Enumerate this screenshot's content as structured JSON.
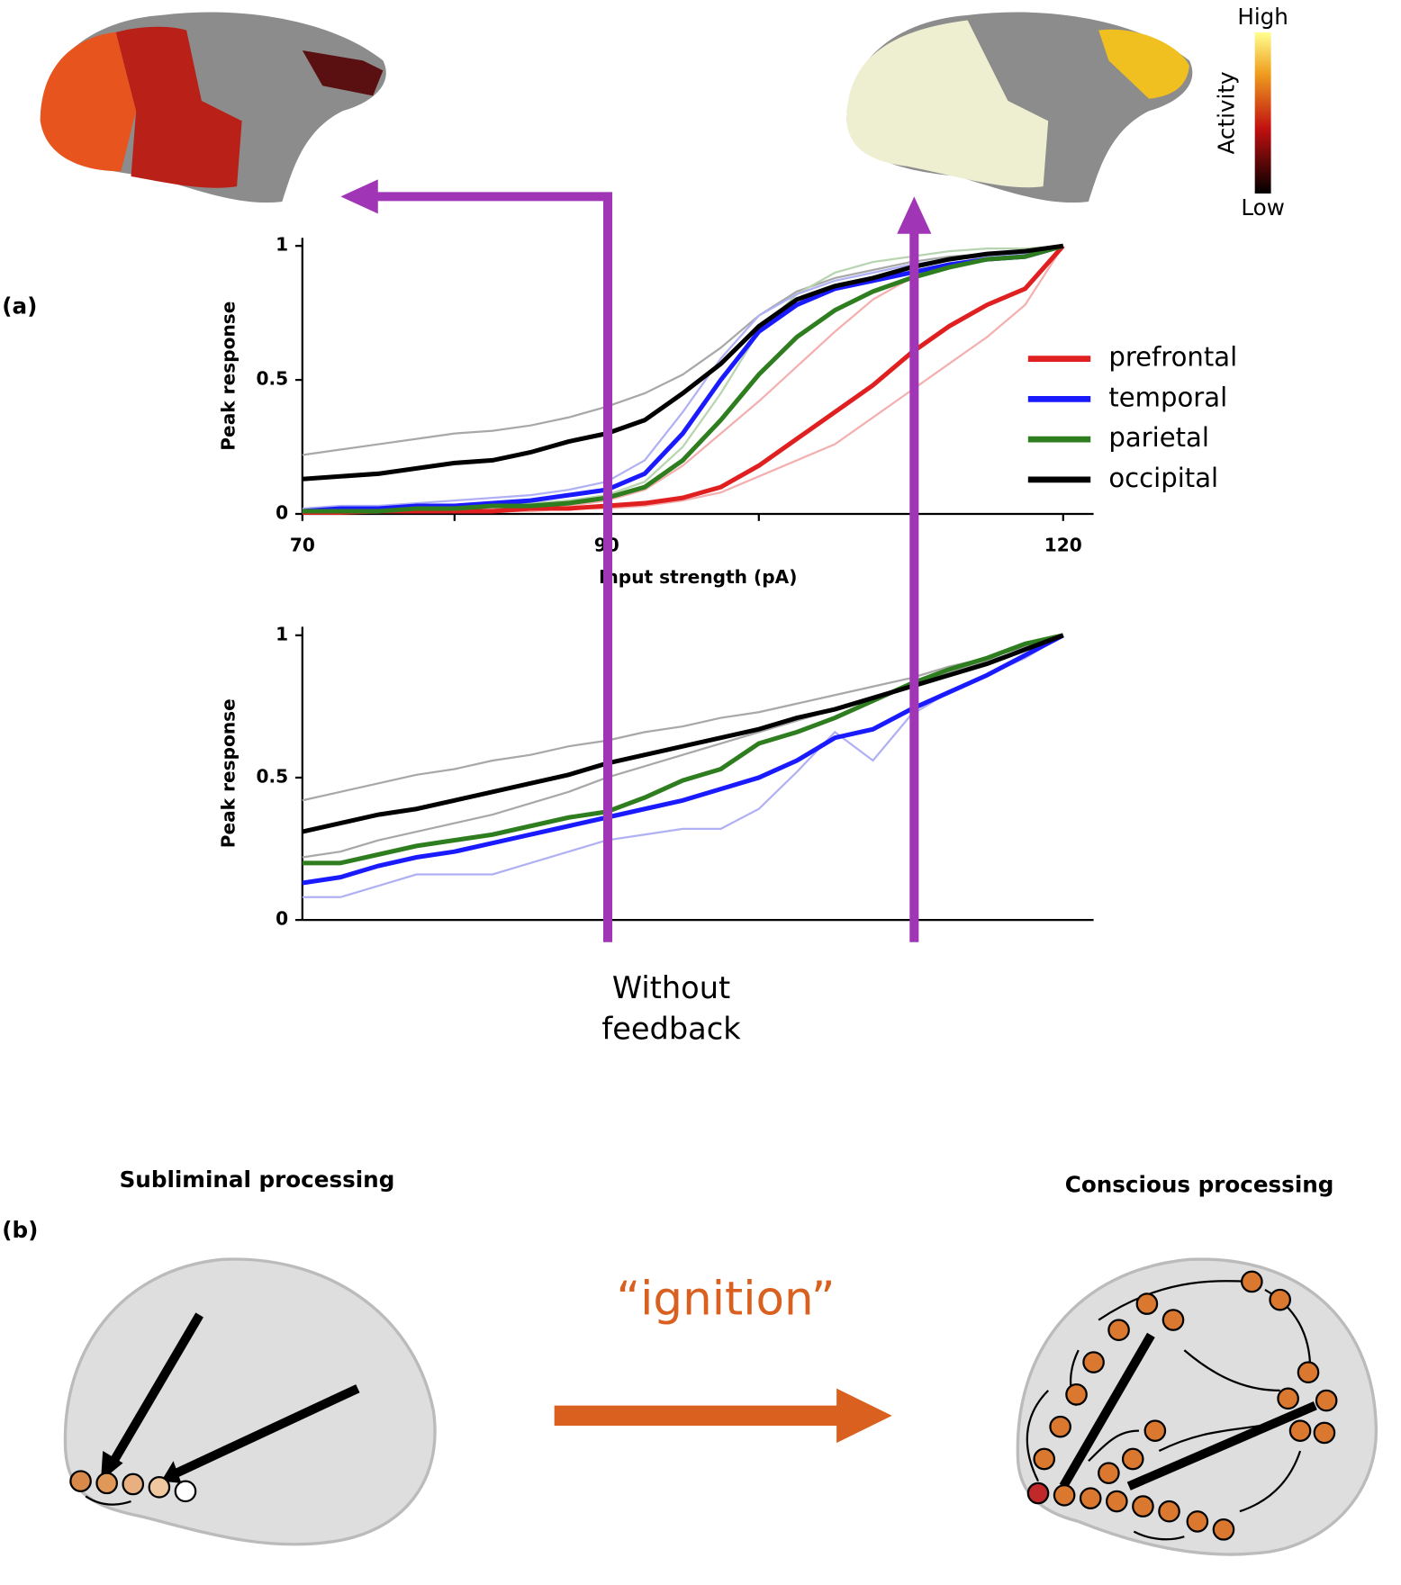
{
  "chart_data": [
    {
      "type": "line",
      "xlabel": "Input strength (pA)",
      "ylabel": "Peak response",
      "xlim": [
        70,
        122
      ],
      "xticks": [
        70,
        90,
        120
      ],
      "xminor_ticks": [
        80,
        100,
        110
      ],
      "ylim": [
        0,
        1.03
      ],
      "yticks": [
        0,
        0.5,
        1
      ],
      "legend": "right",
      "x": [
        70,
        72.5,
        75,
        77.5,
        80,
        82.5,
        85,
        87.5,
        90,
        92.5,
        95,
        97.5,
        100,
        102.5,
        105,
        107.5,
        110,
        112.5,
        115,
        117.5,
        120
      ],
      "traces": [
        {
          "color": "#a8a8a8",
          "values": [
            0.22,
            0.24,
            0.26,
            0.28,
            0.3,
            0.31,
            0.33,
            0.36,
            0.4,
            0.45,
            0.52,
            0.62,
            0.74,
            0.83,
            0.88,
            0.91,
            0.94,
            0.96,
            0.97,
            0.98,
            1
          ]
        },
        {
          "color": "#b8d4b0",
          "values": [
            0.01,
            0.01,
            0.02,
            0.02,
            0.03,
            0.03,
            0.04,
            0.05,
            0.07,
            0.12,
            0.25,
            0.45,
            0.68,
            0.82,
            0.9,
            0.94,
            0.96,
            0.98,
            0.99,
            0.99,
            1
          ]
        },
        {
          "color": "#f4b0b0",
          "values": [
            0.005,
            0.005,
            0.01,
            0.01,
            0.01,
            0.02,
            0.02,
            0.03,
            0.05,
            0.09,
            0.18,
            0.3,
            0.42,
            0.55,
            0.68,
            0.8,
            0.88,
            0.93,
            0.96,
            0.98,
            1
          ]
        },
        {
          "color": "#f4b0b0",
          "values": [
            0.005,
            0.005,
            0.005,
            0.01,
            0.01,
            0.01,
            0.01,
            0.02,
            0.02,
            0.03,
            0.05,
            0.08,
            0.14,
            0.2,
            0.26,
            0.36,
            0.46,
            0.56,
            0.66,
            0.78,
            1
          ]
        },
        {
          "color": "#b0b0f4",
          "values": [
            0.02,
            0.03,
            0.03,
            0.04,
            0.05,
            0.06,
            0.07,
            0.09,
            0.12,
            0.2,
            0.38,
            0.58,
            0.74,
            0.82,
            0.87,
            0.9,
            0.93,
            0.95,
            0.96,
            0.97,
            1
          ]
        }
      ],
      "series": [
        {
          "name": "prefrontal",
          "color": "#e02020",
          "values": [
            0.005,
            0.005,
            0.01,
            0.01,
            0.01,
            0.01,
            0.02,
            0.02,
            0.03,
            0.04,
            0.06,
            0.1,
            0.18,
            0.28,
            0.38,
            0.48,
            0.6,
            0.7,
            0.78,
            0.84,
            1
          ]
        },
        {
          "name": "temporal",
          "color": "#1a1aff",
          "values": [
            0.01,
            0.02,
            0.02,
            0.03,
            0.03,
            0.04,
            0.05,
            0.07,
            0.09,
            0.15,
            0.3,
            0.5,
            0.68,
            0.78,
            0.84,
            0.87,
            0.9,
            0.93,
            0.95,
            0.96,
            1
          ]
        },
        {
          "name": "parietal",
          "color": "#2e7d1e",
          "values": [
            0.01,
            0.01,
            0.01,
            0.02,
            0.02,
            0.03,
            0.03,
            0.04,
            0.06,
            0.1,
            0.2,
            0.35,
            0.52,
            0.66,
            0.76,
            0.83,
            0.88,
            0.92,
            0.95,
            0.96,
            1
          ]
        },
        {
          "name": "occipital",
          "color": "#000000",
          "values": [
            0.13,
            0.14,
            0.15,
            0.17,
            0.19,
            0.2,
            0.23,
            0.27,
            0.3,
            0.35,
            0.45,
            0.56,
            0.7,
            0.8,
            0.85,
            0.88,
            0.92,
            0.95,
            0.97,
            0.98,
            1
          ]
        }
      ]
    },
    {
      "type": "line",
      "ylabel": "Peak response",
      "xlim": [
        70,
        122
      ],
      "ylim": [
        0,
        1.03
      ],
      "yticks": [
        0,
        0.5,
        1
      ],
      "x": [
        70,
        72.5,
        75,
        77.5,
        80,
        82.5,
        85,
        87.5,
        90,
        92.5,
        95,
        97.5,
        100,
        102.5,
        105,
        107.5,
        110,
        112.5,
        115,
        117.5,
        120
      ],
      "traces": [
        {
          "color": "#a8a8a8",
          "values": [
            0.42,
            0.45,
            0.48,
            0.51,
            0.53,
            0.56,
            0.58,
            0.61,
            0.63,
            0.66,
            0.68,
            0.71,
            0.73,
            0.76,
            0.79,
            0.82,
            0.85,
            0.89,
            0.92,
            0.96,
            1
          ]
        },
        {
          "color": "#a8a8a8",
          "values": [
            0.22,
            0.24,
            0.28,
            0.31,
            0.34,
            0.37,
            0.41,
            0.45,
            0.5,
            0.54,
            0.58,
            0.62,
            0.66,
            0.7,
            0.74,
            0.78,
            0.82,
            0.87,
            0.91,
            0.95,
            1
          ]
        },
        {
          "color": "#b0b0f4",
          "values": [
            0.08,
            0.08,
            0.12,
            0.16,
            0.16,
            0.16,
            0.2,
            0.24,
            0.28,
            0.3,
            0.32,
            0.32,
            0.39,
            0.52,
            0.66,
            0.56,
            0.72,
            0.8,
            0.86,
            0.92,
            1
          ]
        }
      ],
      "series": [
        {
          "color": "#1a1aff",
          "values": [
            0.13,
            0.15,
            0.19,
            0.22,
            0.24,
            0.27,
            0.3,
            0.33,
            0.36,
            0.39,
            0.42,
            0.46,
            0.5,
            0.56,
            0.64,
            0.67,
            0.74,
            0.8,
            0.86,
            0.93,
            1
          ]
        },
        {
          "color": "#2e7d1e",
          "values": [
            0.2,
            0.2,
            0.23,
            0.26,
            0.28,
            0.3,
            0.33,
            0.36,
            0.38,
            0.43,
            0.49,
            0.53,
            0.62,
            0.66,
            0.71,
            0.77,
            0.83,
            0.88,
            0.92,
            0.97,
            1
          ]
        },
        {
          "color": "#000000",
          "values": [
            0.31,
            0.34,
            0.37,
            0.39,
            0.42,
            0.45,
            0.48,
            0.51,
            0.55,
            0.58,
            0.61,
            0.64,
            0.67,
            0.71,
            0.74,
            0.78,
            0.82,
            0.86,
            0.9,
            0.95,
            1
          ]
        }
      ]
    }
  ],
  "figure": {
    "panel_a": "(a)",
    "panel_b": "(b)",
    "colorbar_high": "High",
    "colorbar_low": "Low",
    "colorbar_label": "Activity",
    "annotation": [
      "Without",
      "feedback"
    ],
    "subliminal": "Subliminal processing",
    "conscious": "Conscious processing",
    "ignition": "“ignition”"
  }
}
